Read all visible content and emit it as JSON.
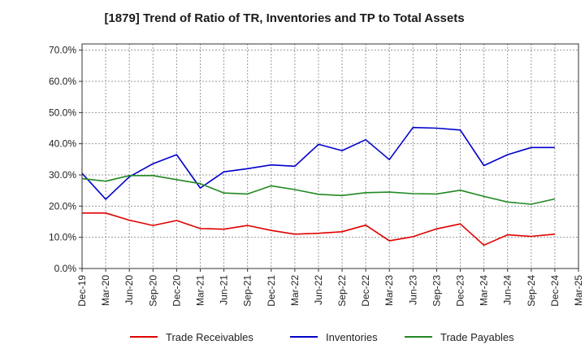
{
  "chart_data": {
    "type": "line",
    "title": "[1879]  Trend of Ratio of TR, Inventories and TP to Total Assets",
    "xlabel": "",
    "ylabel": "",
    "x": [
      "Dec-19",
      "Mar-20",
      "Jun-20",
      "Sep-20",
      "Dec-20",
      "Mar-21",
      "Jun-21",
      "Sep-21",
      "Dec-21",
      "Mar-22",
      "Jun-22",
      "Sep-22",
      "Dec-22",
      "Mar-23",
      "Jun-23",
      "Sep-23",
      "Dec-23",
      "Mar-24",
      "Jun-24",
      "Sep-24",
      "Dec-24"
    ],
    "x_ticks": [
      "Dec-19",
      "Mar-20",
      "Jun-20",
      "Sep-20",
      "Dec-20",
      "Mar-21",
      "Jun-21",
      "Sep-21",
      "Dec-21",
      "Mar-22",
      "Jun-22",
      "Sep-22",
      "Dec-22",
      "Mar-23",
      "Jun-23",
      "Sep-23",
      "Dec-23",
      "Mar-24",
      "Jun-24",
      "Sep-24",
      "Dec-24",
      "Mar-25"
    ],
    "ylim": [
      0,
      72
    ],
    "y_ticks": [
      0,
      10,
      20,
      30,
      40,
      50,
      60,
      70
    ],
    "y_tick_labels": [
      "0.0%",
      "10.0%",
      "20.0%",
      "30.0%",
      "40.0%",
      "50.0%",
      "60.0%",
      "70.0%"
    ],
    "grid": true,
    "legend_position": "bottom",
    "series": [
      {
        "name": "Trade Receivables",
        "color": "#e00000",
        "values": [
          17.8,
          17.8,
          15.5,
          13.8,
          15.4,
          12.8,
          12.6,
          13.8,
          12.2,
          11.0,
          11.3,
          11.8,
          13.9,
          8.9,
          10.2,
          12.7,
          14.3,
          7.5,
          10.8,
          10.3,
          11.0
        ]
      },
      {
        "name": "Inventories",
        "color": "#0000cc",
        "values": [
          30.5,
          22.2,
          29.4,
          33.6,
          36.5,
          25.8,
          31.0,
          32.0,
          33.2,
          32.8,
          39.8,
          37.8,
          41.3,
          34.9,
          45.2,
          45.0,
          44.4,
          33.0,
          36.5,
          38.8,
          38.8
        ]
      },
      {
        "name": "Trade Payables",
        "color": "#228822",
        "values": [
          28.8,
          28.0,
          29.8,
          29.8,
          28.5,
          27.2,
          24.2,
          23.9,
          26.5,
          25.3,
          23.8,
          23.4,
          24.3,
          24.5,
          24.0,
          23.9,
          25.1,
          23.1,
          21.3,
          20.6,
          22.3
        ]
      }
    ]
  }
}
